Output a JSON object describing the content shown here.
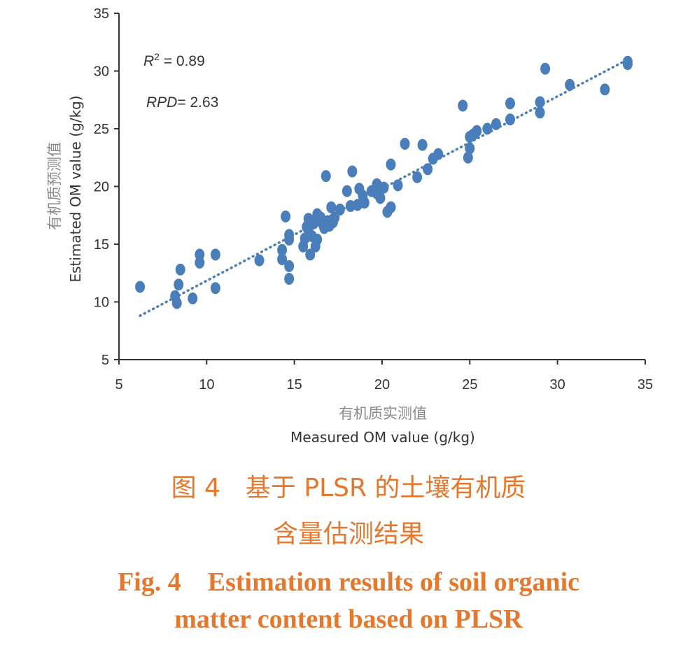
{
  "colors": {
    "points": "#4a7ebb",
    "trendline": "#4a7ebb",
    "caption": "#e4782f",
    "axis": "#333333"
  },
  "annotations": {
    "r2_symbol": "R",
    "r2_sup": "2",
    "r2_value": " = 0.89",
    "rpd_symbol": "RPD",
    "rpd_value": "= 2.63"
  },
  "axes": {
    "x_label_cn": "有机质实测值",
    "x_label_en": "Measured OM value (g/kg)",
    "y_label_cn": "有机质预测值",
    "y_label_en": "Estimated OM value (g/kg)"
  },
  "caption": {
    "cn_line1": "图 4　基于 PLSR 的土壤有机质",
    "cn_line2": "含量估测结果",
    "en_line1": "Fig. 4　Estimation results of soil organic",
    "en_line2": "matter content based on PLSR"
  },
  "chart_data": {
    "type": "scatter",
    "xlim": [
      5,
      35
    ],
    "ylim": [
      5,
      35
    ],
    "x_ticks": [
      "5",
      "10",
      "15",
      "20",
      "25",
      "30",
      "35"
    ],
    "y_ticks": [
      "5",
      "10",
      "15",
      "20",
      "25",
      "30",
      "35"
    ],
    "grid": false,
    "trendline": {
      "style": "dotted",
      "from": [
        6.2,
        8.8
      ],
      "to": [
        34.0,
        31.0
      ]
    },
    "points": [
      [
        6.2,
        11.3
      ],
      [
        8.2,
        10.5
      ],
      [
        8.3,
        9.9
      ],
      [
        8.4,
        11.5
      ],
      [
        8.5,
        12.8
      ],
      [
        9.2,
        10.3
      ],
      [
        9.6,
        14.1
      ],
      [
        9.6,
        13.4
      ],
      [
        10.5,
        14.1
      ],
      [
        10.5,
        11.2
      ],
      [
        13.0,
        13.6
      ],
      [
        14.3,
        14.5
      ],
      [
        14.3,
        13.7
      ],
      [
        14.5,
        17.4
      ],
      [
        14.7,
        15.8
      ],
      [
        14.7,
        15.4
      ],
      [
        14.7,
        13.1
      ],
      [
        14.7,
        12.0
      ],
      [
        15.5,
        14.8
      ],
      [
        15.6,
        15.5
      ],
      [
        15.7,
        16.5
      ],
      [
        15.8,
        16.3
      ],
      [
        15.8,
        17.2
      ],
      [
        15.9,
        14.1
      ],
      [
        16.0,
        15.7
      ],
      [
        16.1,
        16.8
      ],
      [
        16.2,
        17.0
      ],
      [
        16.2,
        14.8
      ],
      [
        16.3,
        17.6
      ],
      [
        16.3,
        15.4
      ],
      [
        16.5,
        17.3
      ],
      [
        16.6,
        16.8
      ],
      [
        16.7,
        16.4
      ],
      [
        16.8,
        20.9
      ],
      [
        16.9,
        17.0
      ],
      [
        17.0,
        16.6
      ],
      [
        17.1,
        18.2
      ],
      [
        17.2,
        16.9
      ],
      [
        17.3,
        17.3
      ],
      [
        17.6,
        18.0
      ],
      [
        18.0,
        19.6
      ],
      [
        18.2,
        18.3
      ],
      [
        18.3,
        21.3
      ],
      [
        18.6,
        18.4
      ],
      [
        18.7,
        19.8
      ],
      [
        18.9,
        19.2
      ],
      [
        19.0,
        18.6
      ],
      [
        19.4,
        19.6
      ],
      [
        19.7,
        20.2
      ],
      [
        19.7,
        19.4
      ],
      [
        19.9,
        19.0
      ],
      [
        20.1,
        19.9
      ],
      [
        20.3,
        17.8
      ],
      [
        20.5,
        18.2
      ],
      [
        20.5,
        21.9
      ],
      [
        20.9,
        20.1
      ],
      [
        21.3,
        23.7
      ],
      [
        22.0,
        20.8
      ],
      [
        22.3,
        23.6
      ],
      [
        22.6,
        21.5
      ],
      [
        22.9,
        22.4
      ],
      [
        23.2,
        22.8
      ],
      [
        24.6,
        27.0
      ],
      [
        24.9,
        22.5
      ],
      [
        25.0,
        23.3
      ],
      [
        25.0,
        24.3
      ],
      [
        25.2,
        24.5
      ],
      [
        25.4,
        24.8
      ],
      [
        26.0,
        25.0
      ],
      [
        26.5,
        25.4
      ],
      [
        27.3,
        27.2
      ],
      [
        27.3,
        25.8
      ],
      [
        29.0,
        27.3
      ],
      [
        29.0,
        26.4
      ],
      [
        29.3,
        30.2
      ],
      [
        30.7,
        28.8
      ],
      [
        32.7,
        28.4
      ],
      [
        34.0,
        30.8
      ],
      [
        34.0,
        30.6
      ]
    ]
  }
}
